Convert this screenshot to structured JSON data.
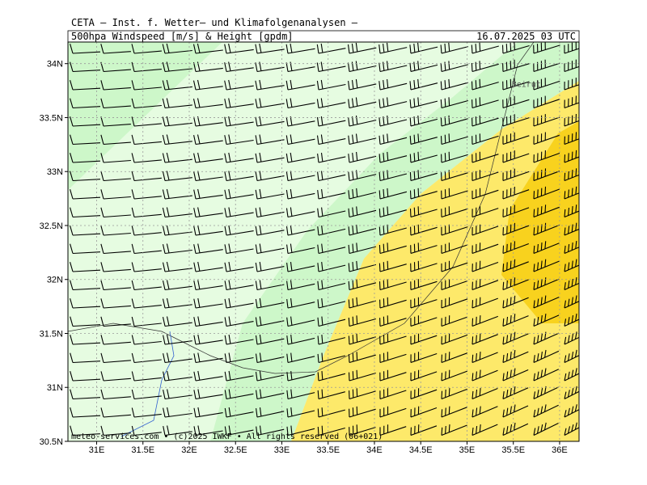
{
  "header": {
    "title": "CETA — Inst. f. Wetter— und Klimafolgenanalysen —",
    "product": "500hpa_Windspeed_[m/s]_&_Height_[gpdm]",
    "datetime": "16.07.2025 03 UTC"
  },
  "axes": {
    "xlim": [
      30.69,
      36.21
    ],
    "xticks": [
      {
        "value": 31,
        "label": "31E"
      },
      {
        "value": 31.5,
        "label": "31.5E"
      },
      {
        "value": 32,
        "label": "32E"
      },
      {
        "value": 32.5,
        "label": "32.5E"
      },
      {
        "value": 33,
        "label": "33E"
      },
      {
        "value": 33.5,
        "label": "33.5E"
      },
      {
        "value": 34,
        "label": "34E"
      },
      {
        "value": 34.5,
        "label": "34.5E"
      },
      {
        "value": 35,
        "label": "35E"
      },
      {
        "value": 35.5,
        "label": "35.5E"
      },
      {
        "value": 36,
        "label": "36E"
      }
    ],
    "ylim": [
      30.5,
      34.2
    ],
    "yticks": [
      {
        "value": 30.5,
        "label": "30.5N"
      },
      {
        "value": 31,
        "label": "31N"
      },
      {
        "value": 31.5,
        "label": "31.5N"
      },
      {
        "value": 32,
        "label": "32N"
      },
      {
        "value": 32.5,
        "label": "32.5N"
      },
      {
        "value": 33,
        "label": "33N"
      },
      {
        "value": 33.5,
        "label": "33.5N"
      },
      {
        "value": 34,
        "label": "34N"
      }
    ]
  },
  "places": [
    {
      "name": "Beirut",
      "lon": 35.5,
      "lat": 33.89
    }
  ],
  "footer": "meteo-services.com • (c)2025 IWKF • All rights reserved (06+021)"
}
